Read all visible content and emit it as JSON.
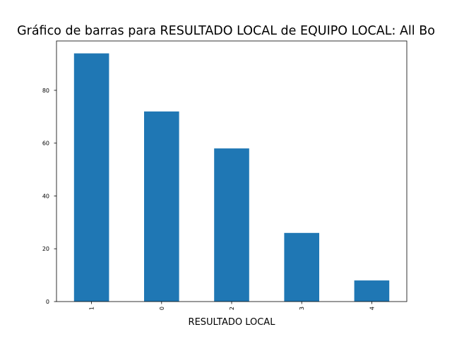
{
  "chart_data": {
    "type": "bar",
    "title": "Gráfico de barras para RESULTADO LOCAL de EQUIPO LOCAL: All Bo",
    "xlabel": "RESULTADO LOCAL",
    "ylabel": "",
    "categories": [
      "1",
      "0",
      "2",
      "3",
      "4"
    ],
    "values": [
      94,
      72,
      58,
      26,
      8
    ],
    "yticks": [
      0,
      20,
      40,
      60,
      80
    ],
    "ylim": [
      0,
      98.7
    ],
    "grid": false,
    "legend": "none",
    "bar_color": "#1f77b4"
  }
}
